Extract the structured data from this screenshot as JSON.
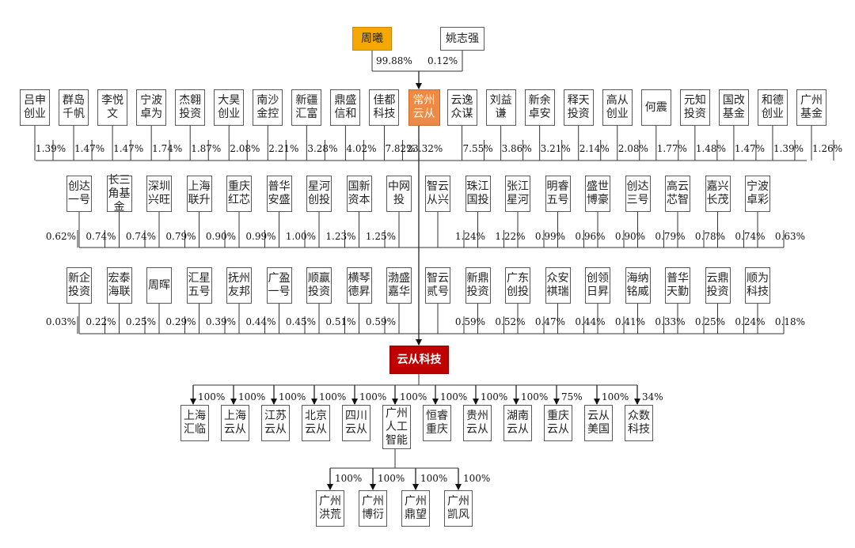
{
  "colors": {
    "gold": "#f5a800",
    "orange": "#ee8a45",
    "red": "#c00000",
    "line": "#333333"
  },
  "top_holders": [
    {
      "name": "周曦",
      "pct": "99.88%",
      "style": "gold"
    },
    {
      "name": "姚志强",
      "pct": "0.12%",
      "style": "plain"
    }
  ],
  "center_entity": "常州\n云从",
  "company": "云从科技",
  "shareholders_row1": [
    {
      "name": "吕申\n创业",
      "pct": "1.39%"
    },
    {
      "name": "群岛\n千帆",
      "pct": "1.47%"
    },
    {
      "name": "李悦\n文",
      "pct": "1.47%"
    },
    {
      "name": "宁波\n卓为",
      "pct": "1.74%"
    },
    {
      "name": "杰翱\n投资",
      "pct": "1.87%"
    },
    {
      "name": "大昊\n创业",
      "pct": "2.08%"
    },
    {
      "name": "南沙\n金控",
      "pct": "2.21%"
    },
    {
      "name": "新疆\n汇富",
      "pct": "3.28%"
    },
    {
      "name": "鼎盛\n信和",
      "pct": "4.02%"
    },
    {
      "name": "佳都\n科技",
      "pct": "7.82%"
    },
    {
      "name": "常州\n云从",
      "pct": "23.32%",
      "center": true
    },
    {
      "name": "云逸\n众谋",
      "pct": "7.55%"
    },
    {
      "name": "刘益\n谦",
      "pct": "3.86%"
    },
    {
      "name": "新余\n卓安",
      "pct": "3.21%"
    },
    {
      "name": "释天\n投资",
      "pct": "2.14%"
    },
    {
      "name": "高从\n创业",
      "pct": "2.08%"
    },
    {
      "name": "何震",
      "pct": "1.77%"
    },
    {
      "name": "元知\n投资",
      "pct": "1.48%"
    },
    {
      "name": "国改\n基金",
      "pct": "1.47%"
    },
    {
      "name": "和德\n创业",
      "pct": "1.39%"
    },
    {
      "name": "广州\n基金",
      "pct": "1.26%"
    }
  ],
  "shareholders_row2_left": [
    {
      "name": "创达\n一号",
      "pct": "0.62%"
    },
    {
      "name": "长三\n角基\n金",
      "pct": "0.74%"
    },
    {
      "name": "深圳\n兴旺",
      "pct": "0.74%"
    },
    {
      "name": "上海\n联升",
      "pct": "0.79%"
    },
    {
      "name": "重庆\n红芯",
      "pct": "0.90%"
    },
    {
      "name": "普华\n安盛",
      "pct": "0.99%"
    },
    {
      "name": "星河\n创投",
      "pct": "1.00%"
    },
    {
      "name": "国新\n资本",
      "pct": "1.23%"
    },
    {
      "name": "中网\n投",
      "pct": "1.25%"
    }
  ],
  "shareholders_row2_right": [
    {
      "name": "智云\n从兴",
      "pct": "1.24%"
    },
    {
      "name": "珠江\n国投",
      "pct": "1.22%"
    },
    {
      "name": "张江\n星河",
      "pct": "0.99%"
    },
    {
      "name": "明睿\n五号",
      "pct": "0.96%"
    },
    {
      "name": "盛世\n博豪",
      "pct": "0.90%"
    },
    {
      "name": "创达\n三号",
      "pct": "0.79%"
    },
    {
      "name": "高云\n芯智",
      "pct": "0.78%"
    },
    {
      "name": "嘉兴\n长茂",
      "pct": "0.74%"
    },
    {
      "name": "宁波\n卓彩",
      "pct": "0.63%"
    }
  ],
  "shareholders_row3_left": [
    {
      "name": "新企\n投资",
      "pct": "0.03%"
    },
    {
      "name": "宏泰\n海联",
      "pct": "0.22%"
    },
    {
      "name": "周晖",
      "pct": "0.25%"
    },
    {
      "name": "汇星\n五号",
      "pct": "0.29%"
    },
    {
      "name": "抚州\n友邦",
      "pct": "0.39%"
    },
    {
      "name": "广盈\n一号",
      "pct": "0.44%"
    },
    {
      "name": "顺赢\n投资",
      "pct": "0.45%"
    },
    {
      "name": "横琴\n德昇",
      "pct": "0.51%"
    },
    {
      "name": "渤盛\n嘉华",
      "pct": "0.59%"
    }
  ],
  "shareholders_row3_right": [
    {
      "name": "智云\n贰号",
      "pct": "0.59%"
    },
    {
      "name": "新鼎\n投资",
      "pct": "0.52%"
    },
    {
      "name": "广东\n创投",
      "pct": "0.47%"
    },
    {
      "name": "众安\n祺瑞",
      "pct": "0.44%"
    },
    {
      "name": "创领\n日昇",
      "pct": "0.41%"
    },
    {
      "name": "海纳\n铭威",
      "pct": "0.33%"
    },
    {
      "name": "普华\n天勤",
      "pct": "0.25%"
    },
    {
      "name": "云鼎\n投资",
      "pct": "0.24%"
    },
    {
      "name": "顺为\n科技",
      "pct": "0.18%"
    }
  ],
  "subsidiaries": [
    {
      "name": "上海\n汇临",
      "pct": "100%"
    },
    {
      "name": "上海\n云从",
      "pct": "100%"
    },
    {
      "name": "江苏\n云从",
      "pct": "100%"
    },
    {
      "name": "北京\n云从",
      "pct": "100%"
    },
    {
      "name": "四川\n云从",
      "pct": "100%"
    },
    {
      "name": "广州\n人工\n智能",
      "pct": "100%"
    },
    {
      "name": "恒睿\n重庆",
      "pct": "100%"
    },
    {
      "name": "贵州\n云从",
      "pct": "100%"
    },
    {
      "name": "湖南\n云从",
      "pct": "100%"
    },
    {
      "name": "重庆\n云从",
      "pct": "75%"
    },
    {
      "name": "云从\n美国",
      "pct": "100%"
    },
    {
      "name": "众数\n科技",
      "pct": "34%"
    }
  ],
  "gz_subsidiaries": [
    {
      "name": "广州\n洪荒",
      "pct": "100%"
    },
    {
      "name": "广州\n博衍",
      "pct": "100%"
    },
    {
      "name": "广州\n鼎望",
      "pct": "100%"
    },
    {
      "name": "广州\n凯风",
      "pct": "100%"
    }
  ]
}
